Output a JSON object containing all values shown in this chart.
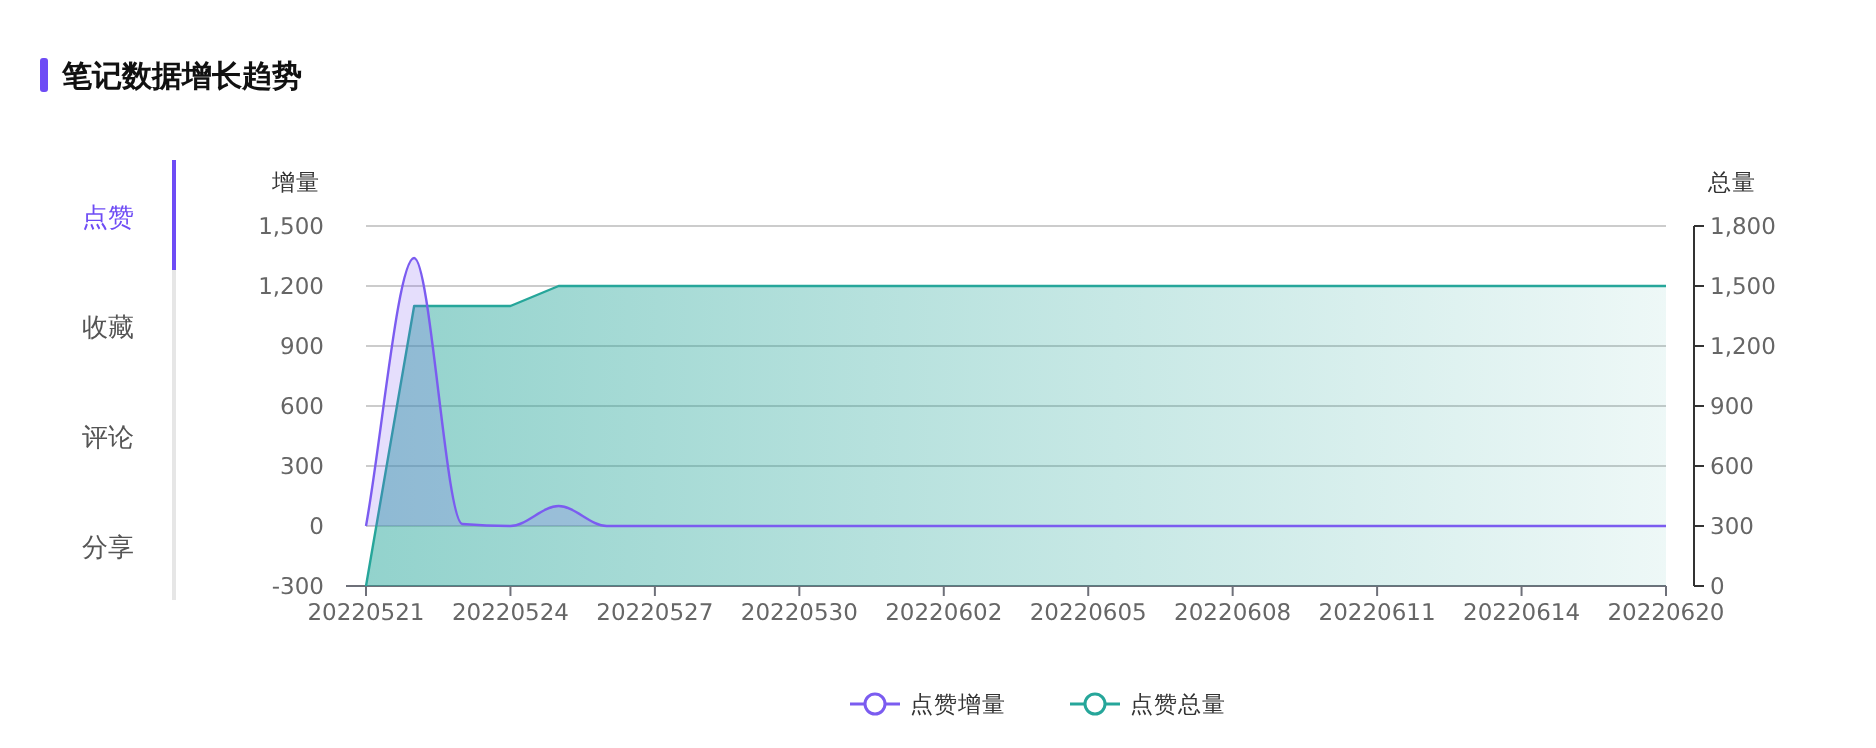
{
  "chart_data": {
    "type": "area",
    "title": "笔记数据增长趋势",
    "annotations": [
      "点赞",
      "收藏",
      "评论",
      "分享"
    ],
    "categories": [
      "20220521",
      null,
      null,
      "20220524",
      null,
      null,
      "20220527",
      null,
      null,
      "20220530",
      null,
      null,
      "20220602",
      null,
      null,
      "20220605",
      null,
      null,
      "20220608",
      null,
      null,
      "20220611",
      null,
      null,
      "20220614",
      null,
      null,
      "20220620"
    ],
    "series": [
      {
        "name": "点赞增量",
        "color": "#7b5cf0",
        "values": [
          0,
          1340,
          10,
          0,
          100,
          0,
          0,
          0,
          0,
          0,
          0,
          0,
          0,
          0,
          0,
          0,
          0,
          0,
          0,
          0,
          0,
          0,
          0,
          0,
          0,
          0,
          0,
          0
        ]
      },
      {
        "name": "点赞总量",
        "color": "#26a69a",
        "axis": "y2",
        "values": [
          0,
          1400,
          1400,
          1400,
          1500,
          1500,
          1500,
          1500,
          1500,
          1500,
          1500,
          1500,
          1500,
          1500,
          1500,
          1500,
          1500,
          1500,
          1500,
          1500,
          1500,
          1500,
          1500,
          1500,
          1500,
          1500,
          1500,
          1500
        ]
      }
    ],
    "ylabel": "增量",
    "y2label": "总量",
    "ylim": [
      -300,
      1500
    ],
    "yticks": [
      {
        "value": -300,
        "label": "-300"
      },
      0,
      300,
      600,
      900,
      {
        "value": 1200,
        "label": "1,200"
      },
      {
        "value": 1500,
        "label": "1,500"
      }
    ],
    "y2lim": [
      0,
      1800
    ],
    "y2ticks": [
      0,
      300,
      600,
      900,
      {
        "value": 1200,
        "label": "1,200"
      },
      {
        "value": 1500,
        "label": "1,500"
      },
      {
        "value": 1800,
        "label": "1,800"
      }
    ],
    "grid": "y",
    "legend": "bottom"
  }
}
